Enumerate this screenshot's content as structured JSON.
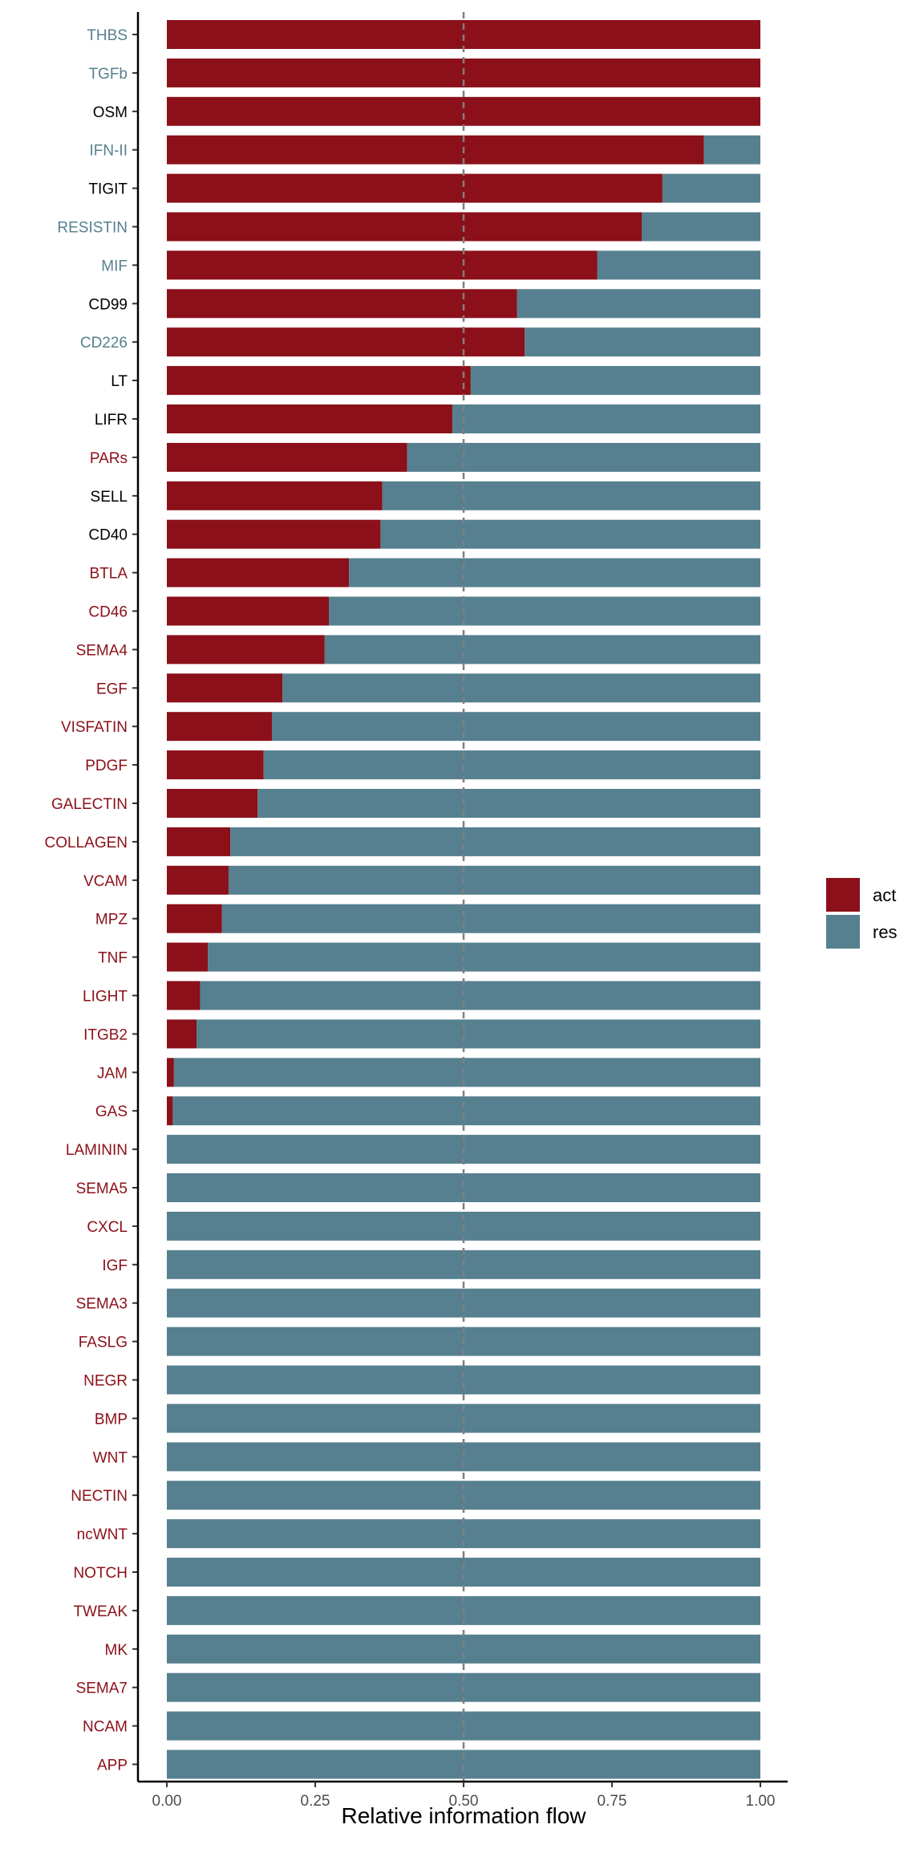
{
  "chart_data": {
    "type": "bar",
    "orientation": "horizontal",
    "stacked": true,
    "xlabel": "Relative information flow",
    "ylabel": "",
    "xlim": [
      0,
      1
    ],
    "x_ticks": [
      "0.00",
      "0.25",
      "0.50",
      "0.75",
      "1.00"
    ],
    "x_tick_values": [
      0,
      0.25,
      0.5,
      0.75,
      1
    ],
    "reference_line": 0.5,
    "grid": false,
    "legend_position": "right",
    "colors": {
      "act": "#8b1019",
      "res": "#56808f",
      "neutral_label": "#000000",
      "reference_line": "#7f7f7f"
    },
    "categories": [
      "THBS",
      "TGFb",
      "OSM",
      "IFN-II",
      "TIGIT",
      "RESISTIN",
      "MIF",
      "CD99",
      "CD226",
      "LT",
      "LIFR",
      "PARs",
      "SELL",
      "CD40",
      "BTLA",
      "CD46",
      "SEMA4",
      "EGF",
      "VISFATIN",
      "PDGF",
      "GALECTIN",
      "COLLAGEN",
      "VCAM",
      "MPZ",
      "TNF",
      "LIGHT",
      "ITGB2",
      "JAM",
      "GAS",
      "LAMININ",
      "SEMA5",
      "CXCL",
      "IGF",
      "SEMA3",
      "FASLG",
      "NEGR",
      "BMP",
      "WNT",
      "NECTIN",
      "ncWNT",
      "NOTCH",
      "TWEAK",
      "MK",
      "SEMA7",
      "NCAM",
      "APP"
    ],
    "label_groups": [
      "res",
      "res",
      "neutral",
      "res",
      "neutral",
      "res",
      "res",
      "neutral",
      "res",
      "neutral",
      "neutral",
      "act",
      "neutral",
      "neutral",
      "act",
      "act",
      "act",
      "act",
      "act",
      "act",
      "act",
      "act",
      "act",
      "act",
      "act",
      "act",
      "act",
      "act",
      "act",
      "act",
      "act",
      "act",
      "act",
      "act",
      "act",
      "act",
      "act",
      "act",
      "act",
      "act",
      "act",
      "act",
      "act",
      "act",
      "act",
      "act"
    ],
    "series": [
      {
        "name": "act",
        "values": [
          1.0,
          1.0,
          1.0,
          0.905,
          0.835,
          0.8,
          0.725,
          0.59,
          0.603,
          0.512,
          0.481,
          0.405,
          0.363,
          0.36,
          0.307,
          0.273,
          0.266,
          0.195,
          0.177,
          0.163,
          0.153,
          0.107,
          0.104,
          0.093,
          0.069,
          0.056,
          0.05,
          0.012,
          0.01,
          0,
          0,
          0,
          0,
          0,
          0,
          0,
          0,
          0,
          0,
          0,
          0,
          0,
          0,
          0,
          0,
          0
        ]
      },
      {
        "name": "res",
        "values": [
          0,
          0,
          0,
          0.095,
          0.165,
          0.2,
          0.275,
          0.41,
          0.397,
          0.488,
          0.519,
          0.595,
          0.637,
          0.64,
          0.693,
          0.727,
          0.734,
          0.805,
          0.823,
          0.837,
          0.847,
          0.893,
          0.896,
          0.907,
          0.931,
          0.944,
          0.95,
          0.988,
          0.99,
          1,
          1,
          1,
          1,
          1,
          1,
          1,
          1,
          1,
          1,
          1,
          1,
          1,
          1,
          1,
          1,
          1
        ]
      }
    ]
  }
}
